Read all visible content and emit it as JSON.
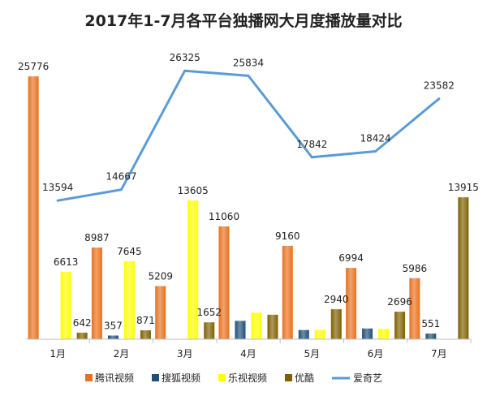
{
  "chart_data": {
    "type": "bar",
    "title": "2017年1-7月各平台独播网大月度播放量对比",
    "categories": [
      "1月",
      "2月",
      "3月",
      "4月",
      "5月",
      "6月",
      "7月"
    ],
    "series": [
      {
        "name": "腾讯视频",
        "type": "bar",
        "color": "#E8711E",
        "values": [
          25776,
          8987,
          5209,
          11060,
          9160,
          6994,
          5986
        ],
        "labels": [
          "25776",
          "8987",
          "5209",
          "11060",
          "9160",
          "6994",
          "5986"
        ]
      },
      {
        "name": "搜狐视频",
        "type": "bar",
        "color": "#1F4E79",
        "values": [
          0,
          357,
          0,
          1800,
          900,
          1050,
          551
        ],
        "labels": [
          "",
          "357",
          "",
          "",
          "",
          "",
          "551"
        ]
      },
      {
        "name": "乐视视频",
        "type": "bar",
        "color": "#FFFF00",
        "values": [
          6613,
          7645,
          13605,
          2600,
          900,
          1000,
          0
        ],
        "labels": [
          "6613",
          "7645",
          "13605",
          "",
          "",
          "",
          ""
        ]
      },
      {
        "name": "优酷",
        "type": "bar",
        "color": "#7F6000",
        "values": [
          642,
          871,
          1652,
          2400,
          2940,
          2696,
          13915
        ],
        "labels": [
          "642",
          "871",
          "1652",
          "",
          "2940",
          "2696",
          "13915"
        ]
      },
      {
        "name": "爱奇艺",
        "type": "line",
        "color": "#5B9BD5",
        "values": [
          13594,
          14667,
          26325,
          25834,
          17842,
          18424,
          23582
        ],
        "labels": [
          "13594",
          "14667",
          "26325",
          "25834",
          "17842",
          "18424",
          "23582"
        ]
      }
    ],
    "ylim": [
      0,
      26500
    ],
    "grid": false,
    "legend_position": "bottom"
  }
}
